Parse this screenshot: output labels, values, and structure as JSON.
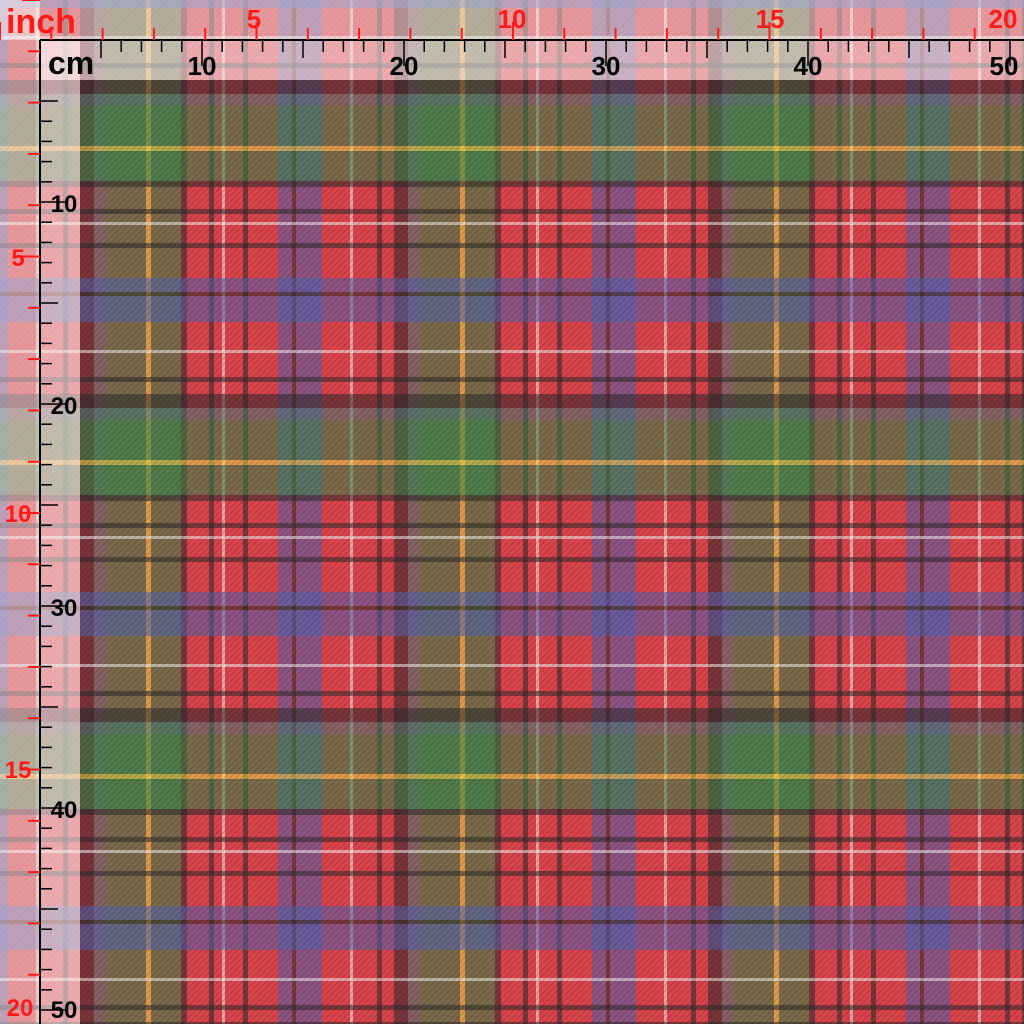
{
  "inch_ruler": {
    "unit_label": "inch",
    "top_labels": [
      "5",
      "10",
      "15",
      "20"
    ],
    "left_labels": [
      "5",
      "10",
      "15",
      "20"
    ],
    "color": "#ff1a1a"
  },
  "cm_ruler": {
    "unit_label": "cm",
    "top_labels": [
      "10",
      "20",
      "30",
      "40",
      "50"
    ],
    "left_labels": [
      "10",
      "20",
      "30",
      "40",
      "50"
    ],
    "color": "#000000"
  },
  "fabric": {
    "pattern": "tartan plaid",
    "colors": {
      "red": "#d9434a",
      "green": "#2e8a4a",
      "blue": "#4f63b0",
      "black": "#2a2a2e",
      "yellow": "#e8e04a",
      "white": "#f2f2f2",
      "teal": "#3f7c78"
    }
  }
}
